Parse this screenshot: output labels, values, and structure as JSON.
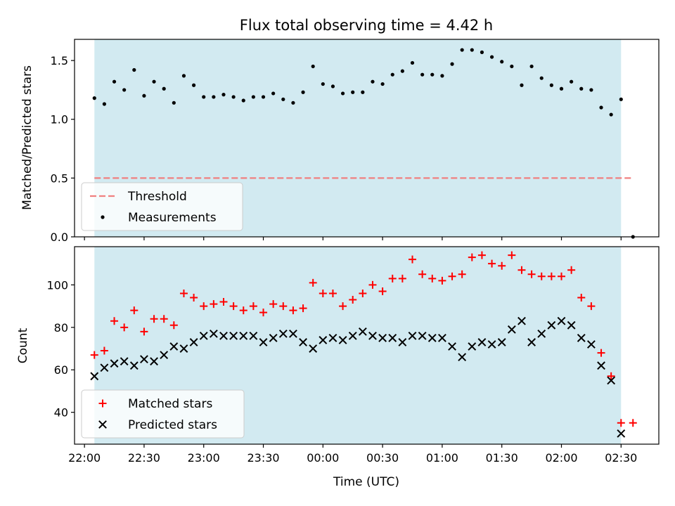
{
  "chart_data": [
    {
      "type": "scatter",
      "title": "Flux total observing time = 4.42 h",
      "xlabel": "",
      "ylabel": "Matched/Predicted stars",
      "xlim": [
        "21:55",
        "02:49"
      ],
      "ylim": [
        0,
        1.68
      ],
      "yticks": [
        0.0,
        0.5,
        1.0,
        1.5
      ],
      "ytick_labels": [
        "0.0",
        "0.5",
        "1.0",
        "1.5"
      ],
      "shaded_span": [
        "22:05",
        "02:30"
      ],
      "shaded_color": "#add8e6",
      "grid": false,
      "legend_position": "lower-left",
      "threshold": {
        "name": "Threshold",
        "value": 0.5,
        "x_range": [
          "22:05",
          "02:36"
        ],
        "color": "#f08080",
        "style": "dashed"
      },
      "series": [
        {
          "name": "Measurements",
          "marker": "dot",
          "color": "#000000",
          "x": [
            "22:05",
            "22:10",
            "22:15",
            "22:20",
            "22:25",
            "22:30",
            "22:35",
            "22:40",
            "22:45",
            "22:50",
            "22:55",
            "23:00",
            "23:05",
            "23:10",
            "23:15",
            "23:20",
            "23:25",
            "23:30",
            "23:35",
            "23:40",
            "23:45",
            "23:50",
            "23:55",
            "00:00",
            "00:05",
            "00:10",
            "00:15",
            "00:20",
            "00:25",
            "00:30",
            "00:35",
            "00:40",
            "00:45",
            "00:50",
            "00:55",
            "01:00",
            "01:05",
            "01:10",
            "01:15",
            "01:20",
            "01:25",
            "01:30",
            "01:35",
            "01:40",
            "01:45",
            "01:50",
            "01:55",
            "02:00",
            "02:05",
            "02:10",
            "02:15",
            "02:20",
            "02:25",
            "02:30",
            "02:36"
          ],
          "y": [
            1.18,
            1.13,
            1.32,
            1.25,
            1.42,
            1.2,
            1.32,
            1.26,
            1.14,
            1.37,
            1.29,
            1.19,
            1.19,
            1.21,
            1.19,
            1.16,
            1.19,
            1.19,
            1.22,
            1.17,
            1.14,
            1.23,
            1.45,
            1.3,
            1.28,
            1.22,
            1.23,
            1.23,
            1.32,
            1.3,
            1.38,
            1.41,
            1.48,
            1.38,
            1.38,
            1.37,
            1.47,
            1.59,
            1.59,
            1.57,
            1.53,
            1.49,
            1.45,
            1.29,
            1.45,
            1.35,
            1.29,
            1.26,
            1.32,
            1.26,
            1.25,
            1.1,
            1.04,
            1.17,
            0.0
          ]
        }
      ]
    },
    {
      "type": "scatter",
      "xlabel": "Time (UTC)",
      "ylabel": "Count",
      "xlim": [
        "21:55",
        "02:49"
      ],
      "ylim": [
        25,
        118
      ],
      "yticks": [
        40,
        60,
        80,
        100
      ],
      "ytick_labels": [
        "40",
        "60",
        "80",
        "100"
      ],
      "xticks": [
        "22:00",
        "22:30",
        "23:00",
        "23:30",
        "00:00",
        "00:30",
        "01:00",
        "01:30",
        "02:00",
        "02:30"
      ],
      "shaded_span": [
        "22:05",
        "02:30"
      ],
      "shaded_color": "#add8e6",
      "grid": false,
      "legend_position": "lower-left",
      "series": [
        {
          "name": "Matched stars",
          "marker": "plus",
          "color": "#ff0000",
          "x": [
            "22:05",
            "22:10",
            "22:15",
            "22:20",
            "22:25",
            "22:30",
            "22:35",
            "22:40",
            "22:45",
            "22:50",
            "22:55",
            "23:00",
            "23:05",
            "23:10",
            "23:15",
            "23:20",
            "23:25",
            "23:30",
            "23:35",
            "23:40",
            "23:45",
            "23:50",
            "23:55",
            "00:00",
            "00:05",
            "00:10",
            "00:15",
            "00:20",
            "00:25",
            "00:30",
            "00:35",
            "00:40",
            "00:45",
            "00:50",
            "00:55",
            "01:00",
            "01:05",
            "01:10",
            "01:15",
            "01:20",
            "01:25",
            "01:30",
            "01:35",
            "01:40",
            "01:45",
            "01:50",
            "01:55",
            "02:00",
            "02:05",
            "02:10",
            "02:15",
            "02:20",
            "02:25",
            "02:30",
            "02:36"
          ],
          "y": [
            67,
            69,
            83,
            80,
            88,
            78,
            84,
            84,
            81,
            96,
            94,
            90,
            91,
            92,
            90,
            88,
            90,
            87,
            91,
            90,
            88,
            89,
            101,
            96,
            96,
            90,
            93,
            96,
            100,
            97,
            103,
            103,
            112,
            105,
            103,
            102,
            104,
            105,
            113,
            114,
            110,
            109,
            114,
            107,
            105,
            104,
            104,
            104,
            107,
            94,
            90,
            68,
            57,
            35,
            35
          ]
        },
        {
          "name": "Predicted stars",
          "marker": "x",
          "color": "#000000",
          "x": [
            "22:05",
            "22:10",
            "22:15",
            "22:20",
            "22:25",
            "22:30",
            "22:35",
            "22:40",
            "22:45",
            "22:50",
            "22:55",
            "23:00",
            "23:05",
            "23:10",
            "23:15",
            "23:20",
            "23:25",
            "23:30",
            "23:35",
            "23:40",
            "23:45",
            "23:50",
            "23:55",
            "00:00",
            "00:05",
            "00:10",
            "00:15",
            "00:20",
            "00:25",
            "00:30",
            "00:35",
            "00:40",
            "00:45",
            "00:50",
            "00:55",
            "01:00",
            "01:05",
            "01:10",
            "01:15",
            "01:20",
            "01:25",
            "01:30",
            "01:35",
            "01:40",
            "01:45",
            "01:50",
            "01:55",
            "02:00",
            "02:05",
            "02:10",
            "02:15",
            "02:20",
            "02:25",
            "02:30"
          ],
          "y": [
            57,
            61,
            63,
            64,
            62,
            65,
            64,
            67,
            71,
            70,
            73,
            76,
            77,
            76,
            76,
            76,
            76,
            73,
            75,
            77,
            77,
            73,
            70,
            74,
            75,
            74,
            76,
            78,
            76,
            75,
            75,
            73,
            76,
            76,
            75,
            75,
            71,
            66,
            71,
            73,
            72,
            73,
            79,
            83,
            73,
            77,
            81,
            83,
            81,
            75,
            72,
            62,
            55,
            30
          ]
        }
      ]
    }
  ]
}
